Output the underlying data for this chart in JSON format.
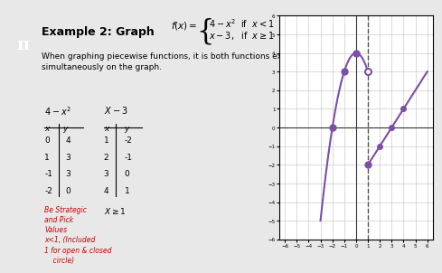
{
  "bg_color": "#e8e8e8",
  "panel_color": "#ffffff",
  "title_text": "Example 2: Graph",
  "piecewise_top": "4 − x²  if  x < 1",
  "piecewise_bot": "x − 3,  if  x ≥ 1",
  "description": "When graphing piecewise functions, it is both functions existing\nsimultaneously on the graph.",
  "table1_header": [
    "4−x²",
    ""
  ],
  "table1_xy": [
    [
      "x",
      "y"
    ],
    [
      0,
      4
    ],
    [
      1,
      3
    ],
    [
      -1,
      3
    ],
    [
      -2,
      0
    ]
  ],
  "table2_header": [
    "X−3",
    ""
  ],
  "table2_xy": [
    [
      "x",
      "y"
    ],
    [
      1,
      "-2"
    ],
    [
      2,
      "-1"
    ],
    [
      3,
      "0"
    ],
    [
      4,
      "1"
    ]
  ],
  "note": "X≥1",
  "handnote": "Be Strategic\nand Pick\nValues\nx<1, (Included\n1 for open & closed\n    circle)",
  "curve_color": "#7b4fa6",
  "dashed_line_color": "#555555",
  "grid_color": "#cccccc",
  "axis_color": "#333333",
  "open_circle_color": "#7b4fa6",
  "closed_circle_color": "#7b4fa6",
  "xlim": [
    -6.5,
    6.5
  ],
  "ylim": [
    -6,
    6
  ],
  "xticks": [
    -6,
    -5,
    -4,
    -3,
    -2,
    -1,
    0,
    1,
    2,
    3,
    4,
    5,
    6
  ],
  "yticks": [
    -6,
    -5,
    -4,
    -3,
    -2,
    -1,
    0,
    1,
    2,
    3,
    4,
    5,
    6
  ]
}
